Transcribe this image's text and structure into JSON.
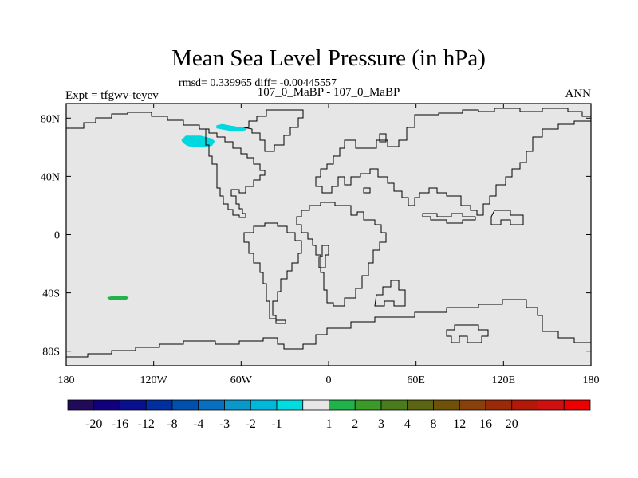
{
  "chart_data": {
    "type": "heatmap",
    "title": "Mean Sea Level Pressure (in hPa)",
    "stats_text": "rmsd= 0.339965 diff= -0.00445557",
    "case_label": "107_0_MaBP - 107_0_MaBP",
    "expt_label": "Expt = tfgwv-teyev",
    "season_label": "ANN",
    "projection": "cylindrical-equidistant",
    "xlim": [
      -180,
      180
    ],
    "ylim": [
      -90,
      90
    ],
    "x_ticks": [
      {
        "value": -180,
        "label": "180"
      },
      {
        "value": -120,
        "label": "120W"
      },
      {
        "value": -60,
        "label": "60W"
      },
      {
        "value": 0,
        "label": "0"
      },
      {
        "value": 60,
        "label": "60E"
      },
      {
        "value": 120,
        "label": "120E"
      },
      {
        "value": 180,
        "label": "180"
      }
    ],
    "y_ticks": [
      {
        "value": 80,
        "label": "80N"
      },
      {
        "value": 40,
        "label": "40N"
      },
      {
        "value": 0,
        "label": "0"
      },
      {
        "value": -40,
        "label": "40S"
      },
      {
        "value": -80,
        "label": "80S"
      }
    ],
    "field_background_color": "#e6e6e6",
    "anomaly_patches": [
      {
        "name": "arctic-patch",
        "value": -1.5,
        "color": "#00d8e0",
        "polygon_lonlat": [
          [
            -77,
            75
          ],
          [
            -73,
            76
          ],
          [
            -68,
            75
          ],
          [
            -62,
            74
          ],
          [
            -57,
            74
          ],
          [
            -56,
            72
          ],
          [
            -60,
            71
          ],
          [
            -66,
            71
          ],
          [
            -72,
            72
          ],
          [
            -77,
            73
          ]
        ]
      },
      {
        "name": "alaska-canada-patch",
        "value": -1.5,
        "color": "#00d8e0",
        "polygon_lonlat": [
          [
            -98,
            68
          ],
          [
            -92,
            68
          ],
          [
            -88,
            68
          ],
          [
            -84,
            67
          ],
          [
            -80,
            66
          ],
          [
            -78,
            64
          ],
          [
            -80,
            61
          ],
          [
            -86,
            60
          ],
          [
            -93,
            60
          ],
          [
            -97,
            61
          ],
          [
            -100,
            63
          ],
          [
            -101,
            65
          ]
        ]
      },
      {
        "name": "south-pacific-patch",
        "value": 1.5,
        "color": "#1fb34a",
        "polygon_lonlat": [
          [
            -152,
            -43
          ],
          [
            -147,
            -42
          ],
          [
            -140,
            -42
          ],
          [
            -137,
            -43
          ],
          [
            -139,
            -45
          ],
          [
            -145,
            -45
          ],
          [
            -150,
            -45
          ]
        ]
      }
    ],
    "colorbar": {
      "colors": [
        "#210a5a",
        "#100080",
        "#081090",
        "#0030a0",
        "#0050b0",
        "#0870c0",
        "#0898cc",
        "#00b8dc",
        "#00dce0",
        "#e6e6e6",
        "#1fb34a",
        "#3c9b28",
        "#4a7c1c",
        "#5b6410",
        "#6d5208",
        "#8a400a",
        "#9b2a08",
        "#b41808",
        "#d01010",
        "#ec0000"
      ],
      "labels": [
        "-20",
        "-16",
        "-12",
        "-8",
        "-4",
        "-3",
        "-2",
        "-1",
        "1",
        "2",
        "3",
        "4",
        "8",
        "12",
        "16",
        "20"
      ]
    }
  }
}
